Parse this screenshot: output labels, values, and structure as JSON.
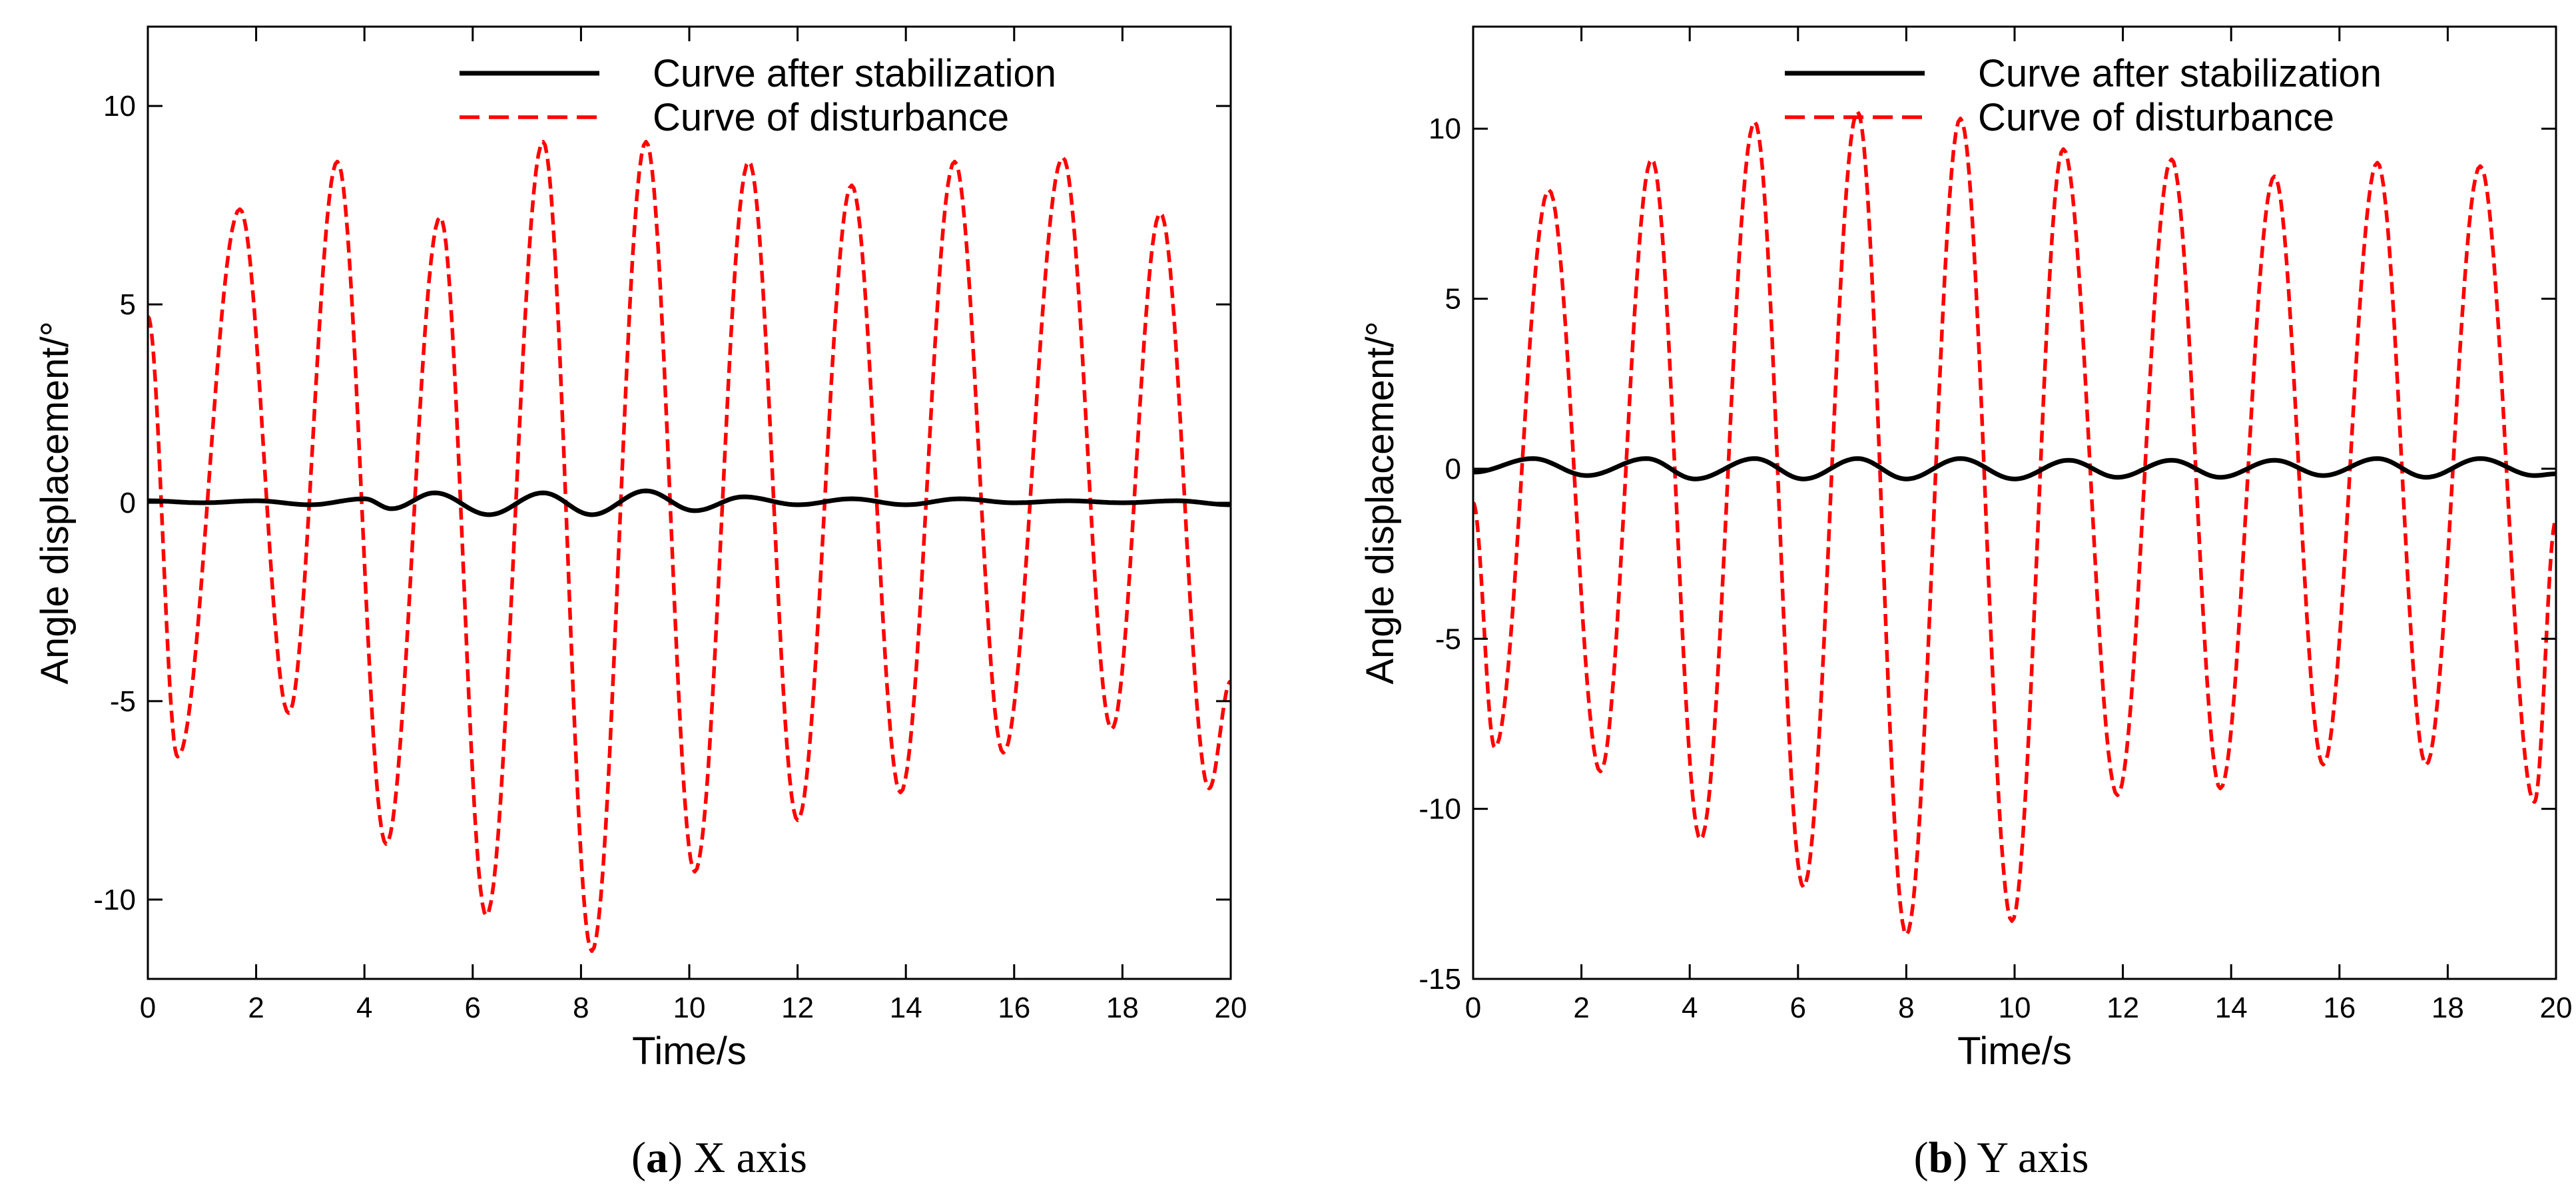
{
  "figure": {
    "captions": [
      {
        "letter": "a",
        "text": " X axis"
      },
      {
        "letter": "b",
        "text": " Y axis"
      }
    ]
  },
  "chart_data": [
    {
      "type": "line",
      "title": "",
      "xlabel": "Time/s",
      "ylabel": "Angle displacement/°",
      "xlim": [
        0,
        20
      ],
      "ylim": [
        -12,
        12
      ],
      "xticks": [
        0,
        2,
        4,
        6,
        8,
        10,
        12,
        14,
        16,
        18,
        20
      ],
      "yticks": [
        -10,
        -5,
        0,
        5,
        10
      ],
      "grid": false,
      "legend_position": "top-right",
      "series": [
        {
          "name": "Curve after stabilization",
          "style": "solid",
          "color": "#000000",
          "x": [
            0,
            1,
            2,
            3,
            4,
            4.5,
            5.3,
            6.3,
            7.3,
            8.2,
            9.2,
            10.1,
            11,
            12,
            13,
            14,
            15,
            16,
            17,
            18,
            19,
            20
          ],
          "y": [
            0.05,
            0.0,
            0.05,
            -0.05,
            0.1,
            -0.15,
            0.25,
            -0.3,
            0.25,
            -0.3,
            0.3,
            -0.2,
            0.15,
            -0.05,
            0.1,
            -0.05,
            0.1,
            0.0,
            0.05,
            0.0,
            0.05,
            -0.05
          ]
        },
        {
          "name": "Curve of disturbance",
          "style": "dashed",
          "color": "#ff0000",
          "x": [
            0,
            0.55,
            1.7,
            2.6,
            3.5,
            4.4,
            5.4,
            6.25,
            7.3,
            8.2,
            9.2,
            10.1,
            11.1,
            12.0,
            13.0,
            13.9,
            14.9,
            15.8,
            16.9,
            17.8,
            18.7,
            19.6,
            20
          ],
          "y": [
            4.7,
            -6.4,
            7.4,
            -5.3,
            8.6,
            -8.6,
            7.2,
            -10.4,
            9.1,
            -11.3,
            9.1,
            -9.3,
            8.6,
            -8.0,
            8.0,
            -7.3,
            8.6,
            -6.3,
            8.7,
            -5.7,
            7.3,
            -7.2,
            -4.5
          ]
        }
      ]
    },
    {
      "type": "line",
      "title": "",
      "xlabel": "Time/s",
      "ylabel": "Angle displacement/°",
      "xlim": [
        0,
        20
      ],
      "ylim": [
        -15,
        13
      ],
      "xticks": [
        0,
        2,
        4,
        6,
        8,
        10,
        12,
        14,
        16,
        18,
        20
      ],
      "yticks": [
        -15,
        -10,
        -5,
        0,
        5,
        10
      ],
      "grid": false,
      "legend_position": "top-right",
      "series": [
        {
          "name": "Curve after stabilization",
          "style": "solid",
          "color": "#000000",
          "x": [
            0,
            1.1,
            2.1,
            3.2,
            4.1,
            5.2,
            6.1,
            7.1,
            8.0,
            9.0,
            10.0,
            11.0,
            11.9,
            12.9,
            13.8,
            14.8,
            15.7,
            16.7,
            17.6,
            18.6,
            19.6,
            20
          ],
          "y": [
            -0.1,
            0.3,
            -0.2,
            0.3,
            -0.3,
            0.3,
            -0.3,
            0.3,
            -0.3,
            0.3,
            -0.3,
            0.25,
            -0.25,
            0.25,
            -0.25,
            0.25,
            -0.2,
            0.3,
            -0.25,
            0.3,
            -0.2,
            -0.15
          ]
        },
        {
          "name": "Curve of disturbance",
          "style": "dashed",
          "color": "#ff0000",
          "x": [
            0,
            0.4,
            1.4,
            2.35,
            3.3,
            4.2,
            5.2,
            6.1,
            7.1,
            8.0,
            9.0,
            9.95,
            10.9,
            11.9,
            12.9,
            13.8,
            14.8,
            15.7,
            16.7,
            17.6,
            18.6,
            19.6,
            20
          ],
          "y": [
            -1.0,
            -8.2,
            8.2,
            -8.9,
            9.1,
            -10.9,
            10.2,
            -12.3,
            10.5,
            -13.7,
            10.3,
            -13.3,
            9.4,
            -9.6,
            9.1,
            -9.4,
            8.6,
            -8.7,
            9.0,
            -8.7,
            8.9,
            -9.8,
            -1.5
          ]
        }
      ]
    }
  ]
}
